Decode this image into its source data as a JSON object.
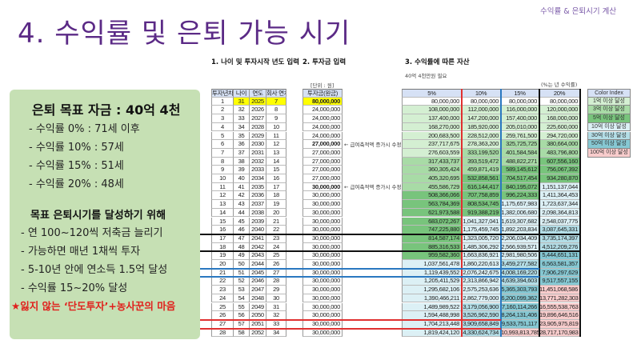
{
  "header": {
    "title": "4. 수익률 및 은퇴 가능 시기",
    "corner_label": "수익률 & 은퇴시기 계산"
  },
  "summary": {
    "goal_title": "은퇴 목표 자금 : 40억 4천",
    "goal_items": [
      "- 수익률   0% : 71세 이후",
      "- 수익률 10% : 57세",
      "- 수익률 15% : 51세",
      "- 수익률 20% : 48세"
    ],
    "plan_title": "목표 은퇴시기를 달성하기 위해",
    "plan_items": [
      "- 연 100~120씩 저축금 늘리기",
      "- 가능하면 매년 1채씩 투자",
      "- 5-10년 안에 연소득 1.5억 달성",
      "- 수익률 15~20% 달성"
    ],
    "highlight": "★잃지 않는 ‘단도투자’+농사꾼의 마음"
  },
  "sections": {
    "s1": "1. 나이 및 투자시작 년도 입력",
    "s2": "2. 투자금 입력",
    "s3": "3. 수익률에 따른 자산",
    "s3_note": "40억 4천만원 필요",
    "unit": "[단위 : 원]",
    "rate_note": "(%는 년 수익률)",
    "salary_note": "← 급여축적액 증가시 수정"
  },
  "columns": [
    "투자년차",
    "나이",
    "연도",
    "회사 연차",
    "투자금(원금)",
    "5%",
    "10%",
    "15%",
    "20%"
  ],
  "colors": {
    "title": "#5b2a86",
    "box": "#c6e0b4",
    "c1": "#d4efd2",
    "c3": "#a8dba6",
    "c5": "#78c47c",
    "c10": "#dcf0f5",
    "c30": "#b3dde6",
    "c50": "#86c8d3",
    "c100": "#f8cccc",
    "yellow": "#ffff00"
  },
  "color_index": {
    "title": "Color Index",
    "items": [
      "1억 이상 달성",
      "3억 이상 달성",
      "5억 이상 달성",
      "10억 이상 달성",
      "30억 이상 달성",
      "50억 이상 달성",
      "100억 이상 달성"
    ]
  },
  "rows": [
    [
      "1",
      "31",
      "2025",
      "7",
      "80,000,000",
      "80,000,000",
      "80,000,000",
      "80,000,000",
      "80,000,000"
    ],
    [
      "2",
      "32",
      "2026",
      "8",
      "24,000,000",
      "108,000,000",
      "112,000,000",
      "116,000,000",
      "120,000,000"
    ],
    [
      "3",
      "33",
      "2027",
      "9",
      "24,000,000",
      "137,400,000",
      "147,200,000",
      "157,400,000",
      "168,000,000"
    ],
    [
      "4",
      "34",
      "2028",
      "10",
      "24,000,000",
      "168,270,000",
      "185,920,000",
      "205,010,000",
      "225,600,000"
    ],
    [
      "5",
      "35",
      "2029",
      "11",
      "24,000,000",
      "200,683,500",
      "228,512,000",
      "259,761,500",
      "294,720,000"
    ],
    [
      "6",
      "36",
      "2030",
      "12",
      "27,000,000",
      "237,717,675",
      "278,363,200",
      "325,725,725",
      "380,664,000"
    ],
    [
      "7",
      "37",
      "2031",
      "13",
      "27,000,000",
      "276,603,559",
      "333,199,520",
      "401,584,584",
      "483,796,800"
    ],
    [
      "8",
      "38",
      "2032",
      "14",
      "27,000,000",
      "317,433,737",
      "393,519,472",
      "488,822,271",
      "607,556,160"
    ],
    [
      "9",
      "39",
      "2033",
      "15",
      "27,000,000",
      "360,305,424",
      "459,871,419",
      "589,145,612",
      "756,067,392"
    ],
    [
      "10",
      "40",
      "2034",
      "16",
      "27,000,000",
      "405,320,695",
      "532,858,561",
      "704,517,454",
      "934,280,870"
    ],
    [
      "11",
      "41",
      "2035",
      "17",
      "30,000,000",
      "455,586,729",
      "616,144,417",
      "840,195,072",
      "1,151,137,044"
    ],
    [
      "12",
      "42",
      "2036",
      "18",
      "30,000,000",
      "508,366,066",
      "707,758,859",
      "996,224,333",
      "1,411,364,453"
    ],
    [
      "13",
      "43",
      "2037",
      "19",
      "30,000,000",
      "563,784,369",
      "808,534,745",
      "1,175,657,983",
      "1,723,637,344"
    ],
    [
      "14",
      "44",
      "2038",
      "20",
      "30,000,000",
      "621,973,588",
      "919,388,219",
      "1,382,006,680",
      "2,098,364,813"
    ],
    [
      "15",
      "45",
      "2039",
      "21",
      "30,000,000",
      "683,072,267",
      "1,041,327,041",
      "1,619,307,682",
      "2,548,037,775"
    ],
    [
      "16",
      "46",
      "2040",
      "22",
      "30,000,000",
      "747,225,880",
      "1,175,459,745",
      "1,892,203,834",
      "3,087,645,331"
    ],
    [
      "17",
      "47",
      "2041",
      "23",
      "30,000,000",
      "814,587,174",
      "1,323,005,720",
      "2,206,034,409",
      "3,735,174,397"
    ],
    [
      "18",
      "48",
      "2042",
      "24",
      "30,000,000",
      "885,316,533",
      "1,485,306,292",
      "2,566,939,571",
      "4,512,209,276"
    ],
    [
      "19",
      "49",
      "2043",
      "25",
      "30,000,000",
      "959,582,360",
      "1,663,836,921",
      "2,981,980,506",
      "5,444,651,131"
    ],
    [
      "20",
      "50",
      "2044",
      "26",
      "30,000,000",
      "1,037,561,478",
      "1,860,220,613",
      "3,459,277,582",
      "6,563,581,357"
    ],
    [
      "21",
      "51",
      "2045",
      "27",
      "30,000,000",
      "1,119,439,552",
      "2,076,242,675",
      "4,008,169,220",
      "7,906,297,629"
    ],
    [
      "22",
      "52",
      "2046",
      "28",
      "30,000,000",
      "1,205,411,529",
      "2,313,866,942",
      "4,639,394,603",
      "9,517,557,155"
    ],
    [
      "23",
      "53",
      "2047",
      "29",
      "30,000,000",
      "1,295,682,106",
      "2,575,253,636",
      "5,365,303,793",
      "11,451,068,586"
    ],
    [
      "24",
      "54",
      "2048",
      "30",
      "30,000,000",
      "1,390,466,211",
      "2,862,779,000",
      "6,200,099,362",
      "13,771,282,303"
    ],
    [
      "25",
      "55",
      "2049",
      "31",
      "30,000,000",
      "1,489,989,522",
      "3,179,056,900",
      "7,160,114,266",
      "16,555,538,763"
    ],
    [
      "26",
      "56",
      "2050",
      "32",
      "30,000,000",
      "1,594,488,998",
      "3,526,962,590",
      "8,264,131,406",
      "19,896,646,516"
    ],
    [
      "27",
      "57",
      "2051",
      "33",
      "30,000,000",
      "1,704,213,448",
      "3,909,658,849",
      "9,533,751,117",
      "23,905,975,819"
    ],
    [
      "28",
      "58",
      "2052",
      "34",
      "30,000,000",
      "1,819,424,120",
      "4,330,624,734",
      "10,993,813,785",
      "28,717,170,983"
    ]
  ]
}
